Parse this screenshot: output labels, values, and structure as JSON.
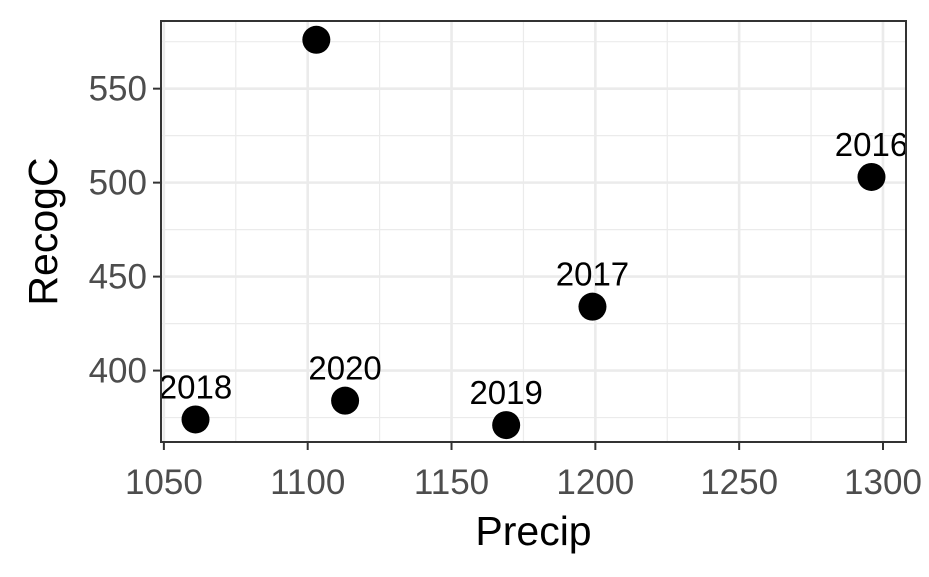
{
  "chart_data": {
    "type": "scatter",
    "xlabel": "Precip",
    "ylabel": "RecogC",
    "xlim": [
      1049,
      1308
    ],
    "ylim": [
      362,
      586
    ],
    "x_ticks": [
      1050,
      1100,
      1150,
      1200,
      1250,
      1300
    ],
    "y_ticks": [
      400,
      450,
      500,
      550
    ],
    "grid": true,
    "points": [
      {
        "x": 1103,
        "y": 576,
        "label": ""
      },
      {
        "x": 1296,
        "y": 503,
        "label": "2016"
      },
      {
        "x": 1199,
        "y": 434,
        "label": "2017"
      },
      {
        "x": 1113,
        "y": 384,
        "label": "2020"
      },
      {
        "x": 1061,
        "y": 374,
        "label": "2018"
      },
      {
        "x": 1169,
        "y": 371,
        "label": "2019"
      }
    ],
    "colors": {
      "points": "#000000",
      "grid": "#ebebeb",
      "panel_border": "#333333"
    }
  }
}
